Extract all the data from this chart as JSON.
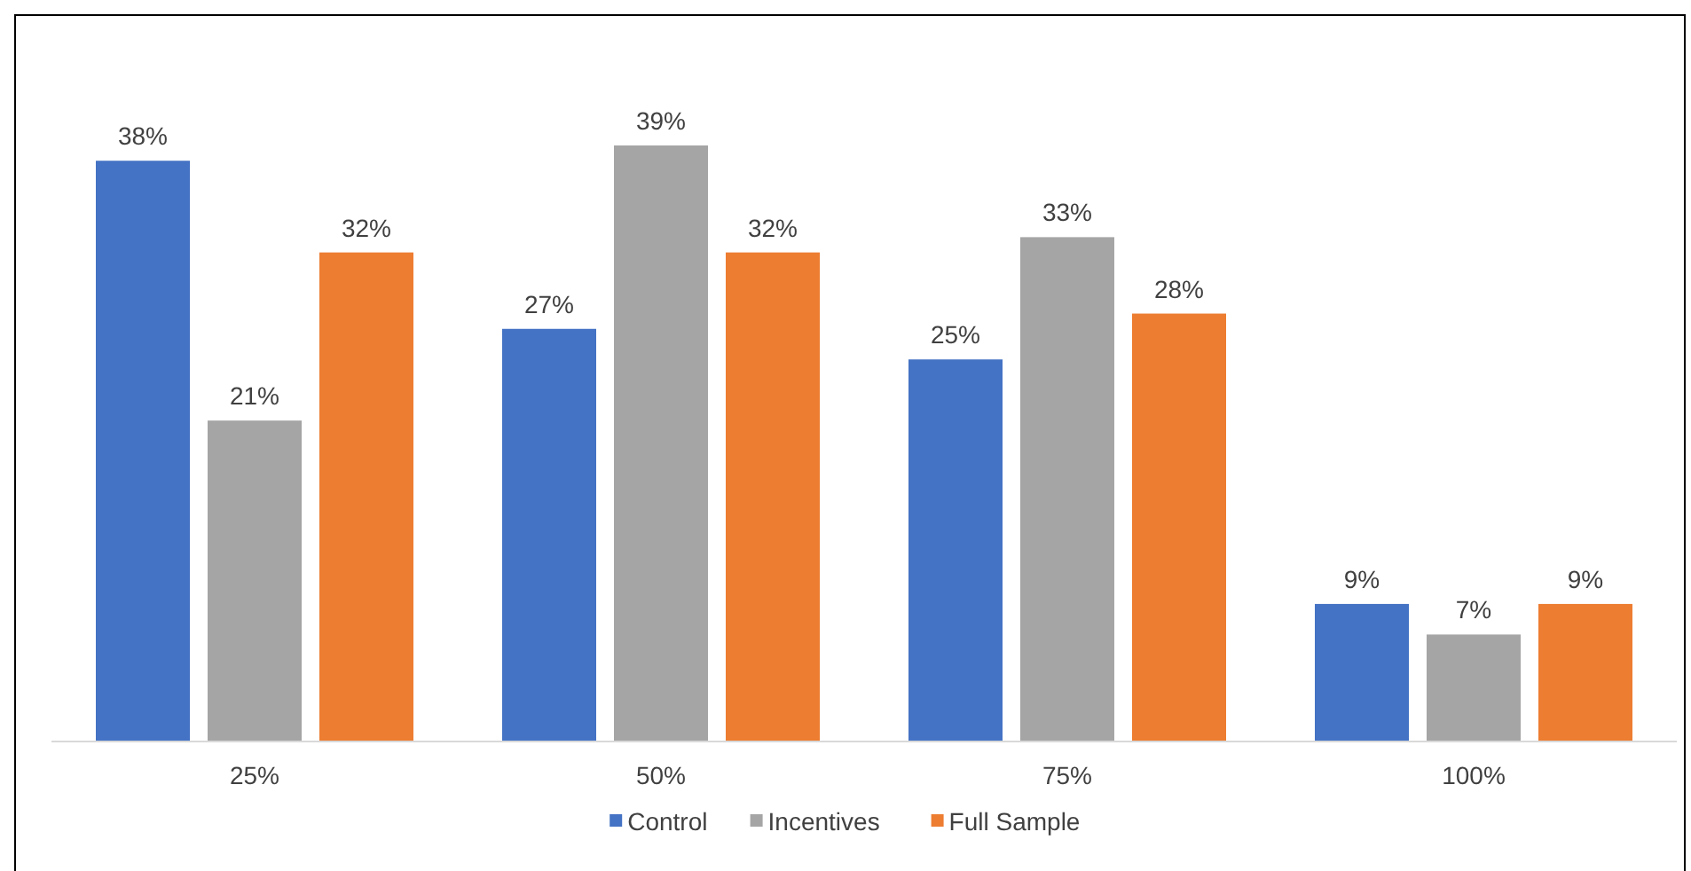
{
  "chart_data": {
    "type": "bar",
    "categories": [
      "25%",
      "50%",
      "75%",
      "100%"
    ],
    "series": [
      {
        "name": "Control",
        "color": "#4472c4",
        "values": [
          38,
          27,
          25,
          9
        ],
        "value_labels": [
          "38%",
          "27%",
          "25%",
          "9%"
        ]
      },
      {
        "name": "Incentives",
        "color": "#a5a5a5",
        "values": [
          21,
          39,
          33,
          7
        ],
        "value_labels": [
          "21%",
          "39%",
          "33%",
          "7%"
        ]
      },
      {
        "name": "Full Sample",
        "color": "#ed7d31",
        "values": [
          32,
          32,
          28,
          9
        ],
        "value_labels": [
          "32%",
          "32%",
          "28%",
          "9%"
        ]
      }
    ],
    "legend": "bottom"
  }
}
